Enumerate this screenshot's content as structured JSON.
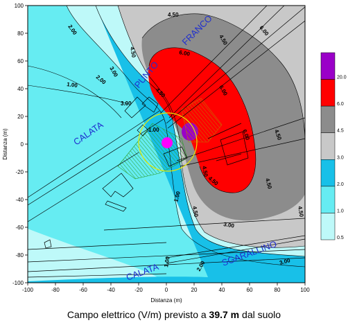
{
  "caption": {
    "prefix": "Campo elettrico (V/m) previsto a",
    "value": "39.7 m",
    "suffix": "dal suolo"
  },
  "axes": {
    "xlabel": "Distanza (m)",
    "ylabel": "Distanza (m)",
    "xlim": [
      -100,
      100
    ],
    "ylim": [
      -100,
      100
    ],
    "x_ticks": [
      "-100",
      "-80",
      "-60",
      "-40",
      "-20",
      "0",
      "20",
      "40",
      "60",
      "80",
      "100"
    ],
    "y_ticks": [
      "100",
      "80",
      "60",
      "40",
      "20",
      "0",
      "-20",
      "-40",
      "-60",
      "-80",
      "-100"
    ]
  },
  "place_labels": [
    "CALATA",
    "PUNTO",
    "FRANCO",
    "CALATA",
    "SGARALLINO"
  ],
  "contour_labels": [
    "4.50",
    "6.00",
    "2.00",
    "3.00",
    "4.50",
    "1.00",
    "2.00",
    "3.00",
    "4.50",
    "6.00",
    "4.50",
    "6.00",
    "1.00",
    "4.50",
    "6.00",
    "4.50",
    "4.50",
    "4.50",
    "1.00",
    "4.50",
    "3.00",
    "1.00",
    "2.00",
    "3.00",
    "4.50"
  ],
  "legend": {
    "levels": [
      "20.0",
      "6.0",
      "4.5",
      "3.0",
      "2.0",
      "1.0",
      "0.5"
    ],
    "colors": [
      "#9a00c8",
      "#ff0000",
      "#8c8c8c",
      "#c8c8c8",
      "#18c0e8",
      "#66ecf2",
      "#bef9f9"
    ]
  },
  "colors": {
    "field_0_5_to_1": "#bef9f9",
    "field_1_to_2": "#66ecf2",
    "field_2_to_3": "#18c0e8",
    "field_3_to_4_5": "#c8c8c8",
    "field_4_5_to_6": "#8c8c8c",
    "field_6_to_20": "#ff0000",
    "field_above_20": "#9a00c8",
    "antenna_marker": "#ff00ff",
    "label_blue": "#1f2fcf",
    "hatch_green": "#2ca02c"
  }
}
